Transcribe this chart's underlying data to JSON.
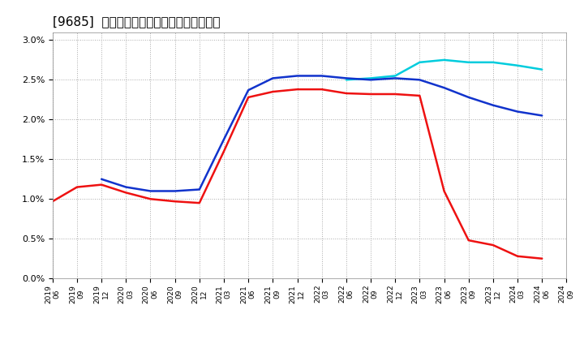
{
  "title": "[9685]  経常利益マージンの標準偏差の推移",
  "title_fontsize": 11,
  "background_color": "#ffffff",
  "plot_bg_color": "#ffffff",
  "grid_color": "#aaaaaa",
  "ylim": [
    0.0,
    0.031
  ],
  "yticks": [
    0.0,
    0.005,
    0.01,
    0.015,
    0.02,
    0.025,
    0.03
  ],
  "series": {
    "3y": {
      "color": "#ee1111",
      "linewidth": 1.8,
      "dates": [
        "2019/06",
        "2019/09",
        "2019/12",
        "2020/03",
        "2020/06",
        "2020/09",
        "2020/12",
        "2021/03",
        "2021/06",
        "2021/09",
        "2021/12",
        "2022/03",
        "2022/06",
        "2022/09",
        "2022/12",
        "2023/03",
        "2023/06",
        "2023/09",
        "2023/12",
        "2024/03",
        "2024/06"
      ],
      "values": [
        0.0097,
        0.0115,
        0.0118,
        0.0108,
        0.01,
        0.0097,
        0.0095,
        0.016,
        0.0228,
        0.0235,
        0.0238,
        0.0238,
        0.0233,
        0.0232,
        0.0232,
        0.023,
        0.011,
        0.0048,
        0.0042,
        0.0028,
        0.0025
      ]
    },
    "5y": {
      "color": "#1133cc",
      "linewidth": 1.8,
      "dates": [
        "2019/12",
        "2020/03",
        "2020/06",
        "2020/09",
        "2020/12",
        "2021/03",
        "2021/06",
        "2021/09",
        "2021/12",
        "2022/03",
        "2022/06",
        "2022/09",
        "2022/12",
        "2023/03",
        "2023/06",
        "2023/09",
        "2023/12",
        "2024/03",
        "2024/06"
      ],
      "values": [
        0.0125,
        0.0115,
        0.011,
        0.011,
        0.0112,
        0.0175,
        0.0237,
        0.0252,
        0.0255,
        0.0255,
        0.0252,
        0.025,
        0.0252,
        0.025,
        0.024,
        0.0228,
        0.0218,
        0.021,
        0.0205
      ]
    },
    "7y": {
      "color": "#00ccdd",
      "linewidth": 1.8,
      "dates": [
        "2022/06",
        "2022/09",
        "2022/12",
        "2023/03",
        "2023/06",
        "2023/09",
        "2023/12",
        "2024/03",
        "2024/06"
      ],
      "values": [
        0.025,
        0.0252,
        0.0255,
        0.0272,
        0.0275,
        0.0272,
        0.0272,
        0.0268,
        0.0263
      ]
    },
    "10y": {
      "color": "#226611",
      "linewidth": 1.8,
      "dates": [],
      "values": []
    }
  },
  "xticks": [
    "2019/06",
    "2019/09",
    "2019/12",
    "2020/03",
    "2020/06",
    "2020/09",
    "2020/12",
    "2021/03",
    "2021/06",
    "2021/09",
    "2021/12",
    "2022/03",
    "2022/06",
    "2022/09",
    "2022/12",
    "2023/03",
    "2023/06",
    "2023/09",
    "2023/12",
    "2024/03",
    "2024/06",
    "2024/09"
  ]
}
